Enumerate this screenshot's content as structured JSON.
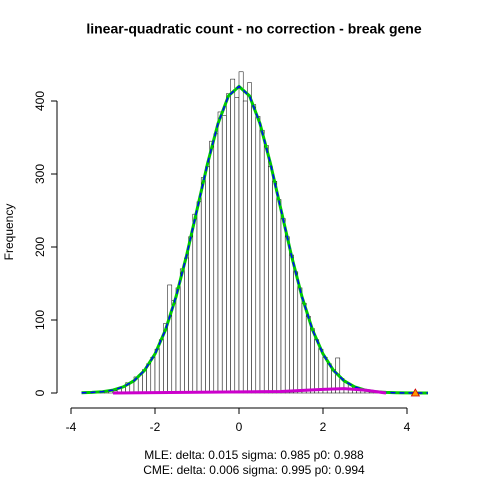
{
  "chart_data": {
    "type": "histogram",
    "title": "linear-quadratic count - no correction - break gene",
    "ylabel": "Frequency",
    "notes": [
      "MLE: delta: 0.015 sigma: 0.985 p0: 0.988",
      "CME: delta: 0.006 sigma: 0.995 p0: 0.994"
    ],
    "bins": [
      -3.5,
      -3.4,
      -3.3,
      -3.2,
      -3.1,
      -3.0,
      -2.9,
      -2.8,
      -2.7,
      -2.6,
      -2.5,
      -2.4,
      -2.3,
      -2.2,
      -2.1,
      -2.0,
      -1.9,
      -1.8,
      -1.7,
      -1.6,
      -1.5,
      -1.4,
      -1.3,
      -1.2,
      -1.1,
      -1.0,
      -0.9,
      -0.8,
      -0.7,
      -0.6,
      -0.5,
      -0.4,
      -0.3,
      -0.2,
      -0.1,
      0,
      0.1,
      0.2,
      0.3,
      0.4,
      0.5,
      0.6,
      0.7,
      0.8,
      0.9,
      1.0,
      1.1,
      1.2,
      1.3,
      1.4,
      1.5,
      1.6,
      1.7,
      1.8,
      1.9,
      2.0,
      2.1,
      2.2,
      2.3,
      2.4,
      2.5,
      2.6,
      2.7,
      2.8,
      2.9,
      3.0,
      3.1,
      3.2,
      3.3,
      3.4,
      3.5,
      3.6
    ],
    "values": [
      1,
      1,
      2,
      3,
      4,
      3,
      7,
      9,
      14,
      15,
      22,
      25,
      32,
      40,
      49,
      60,
      73,
      95,
      148,
      127,
      144,
      170,
      185,
      214,
      245,
      262,
      295,
      310,
      345,
      355,
      385,
      380,
      410,
      430,
      405,
      440,
      400,
      425,
      395,
      379,
      360,
      339,
      310,
      290,
      265,
      239,
      214,
      189,
      166,
      144,
      123,
      105,
      88,
      73,
      60,
      49,
      40,
      32,
      48,
      20,
      15,
      12,
      9,
      7,
      5,
      4,
      3,
      2,
      1,
      1,
      0
    ],
    "bar_color": "#ffffff",
    "lines": [
      {
        "color": "#00cc00",
        "dash": false,
        "x": [
          -3.75,
          -3.5,
          -3.25,
          -3,
          -2.75,
          -2.5,
          -2.25,
          -2,
          -1.75,
          -1.5,
          -1.25,
          -1,
          -0.75,
          -0.5,
          -0.25,
          0,
          0.25,
          0.5,
          0.75,
          1,
          1.25,
          1.5,
          1.75,
          2,
          2.25,
          2.5,
          2.75,
          3,
          3.25,
          3.5,
          3.75,
          4,
          4.25,
          4.5
        ],
        "values": [
          0.3,
          0.8,
          1.8,
          4,
          8.5,
          16.8,
          30.9,
          53.5,
          86.5,
          131.7,
          188,
          251,
          314,
          369,
          407,
          420,
          407,
          369,
          314,
          251,
          188,
          131.7,
          86.5,
          53.5,
          30.9,
          16.8,
          8.5,
          4,
          1.8,
          0.8,
          0.3,
          0.1,
          0,
          0
        ]
      },
      {
        "color": "#0000ff",
        "dash": true,
        "x": [
          -3.75,
          -3.5,
          -3.25,
          -3,
          -2.75,
          -2.5,
          -2.25,
          -2,
          -1.75,
          -1.5,
          -1.25,
          -1,
          -0.75,
          -0.5,
          -0.25,
          0,
          0.25,
          0.5,
          0.75,
          1,
          1.25,
          1.5,
          1.75,
          2,
          2.25,
          2.5,
          2.75,
          3,
          3.25,
          3.5,
          3.75,
          4,
          4.25,
          4.5
        ],
        "values": [
          0.3,
          0.8,
          1.8,
          4,
          8.5,
          16.8,
          30.9,
          53.5,
          86.5,
          131.7,
          188,
          251,
          314,
          369,
          407,
          420,
          407,
          369,
          314,
          251,
          188,
          131.7,
          86.5,
          53.5,
          30.9,
          16.8,
          8.5,
          4,
          1.8,
          0.8,
          0.3,
          0.1,
          0,
          0
        ]
      },
      {
        "color": "#cc00cc",
        "dash": false,
        "x": [
          -3,
          1,
          2,
          2.5,
          3,
          3.5
        ],
        "values": [
          0,
          2,
          5,
          6,
          4,
          0
        ]
      }
    ],
    "points": [
      {
        "x": 4.2,
        "y": 0,
        "color": "#ff9900"
      }
    ],
    "xlim": [
      -4,
      4
    ],
    "ylim": [
      0,
      400
    ],
    "xticks": [
      -4,
      -2,
      0,
      2,
      4
    ],
    "yticks": [
      0,
      100,
      200,
      300,
      400
    ]
  }
}
